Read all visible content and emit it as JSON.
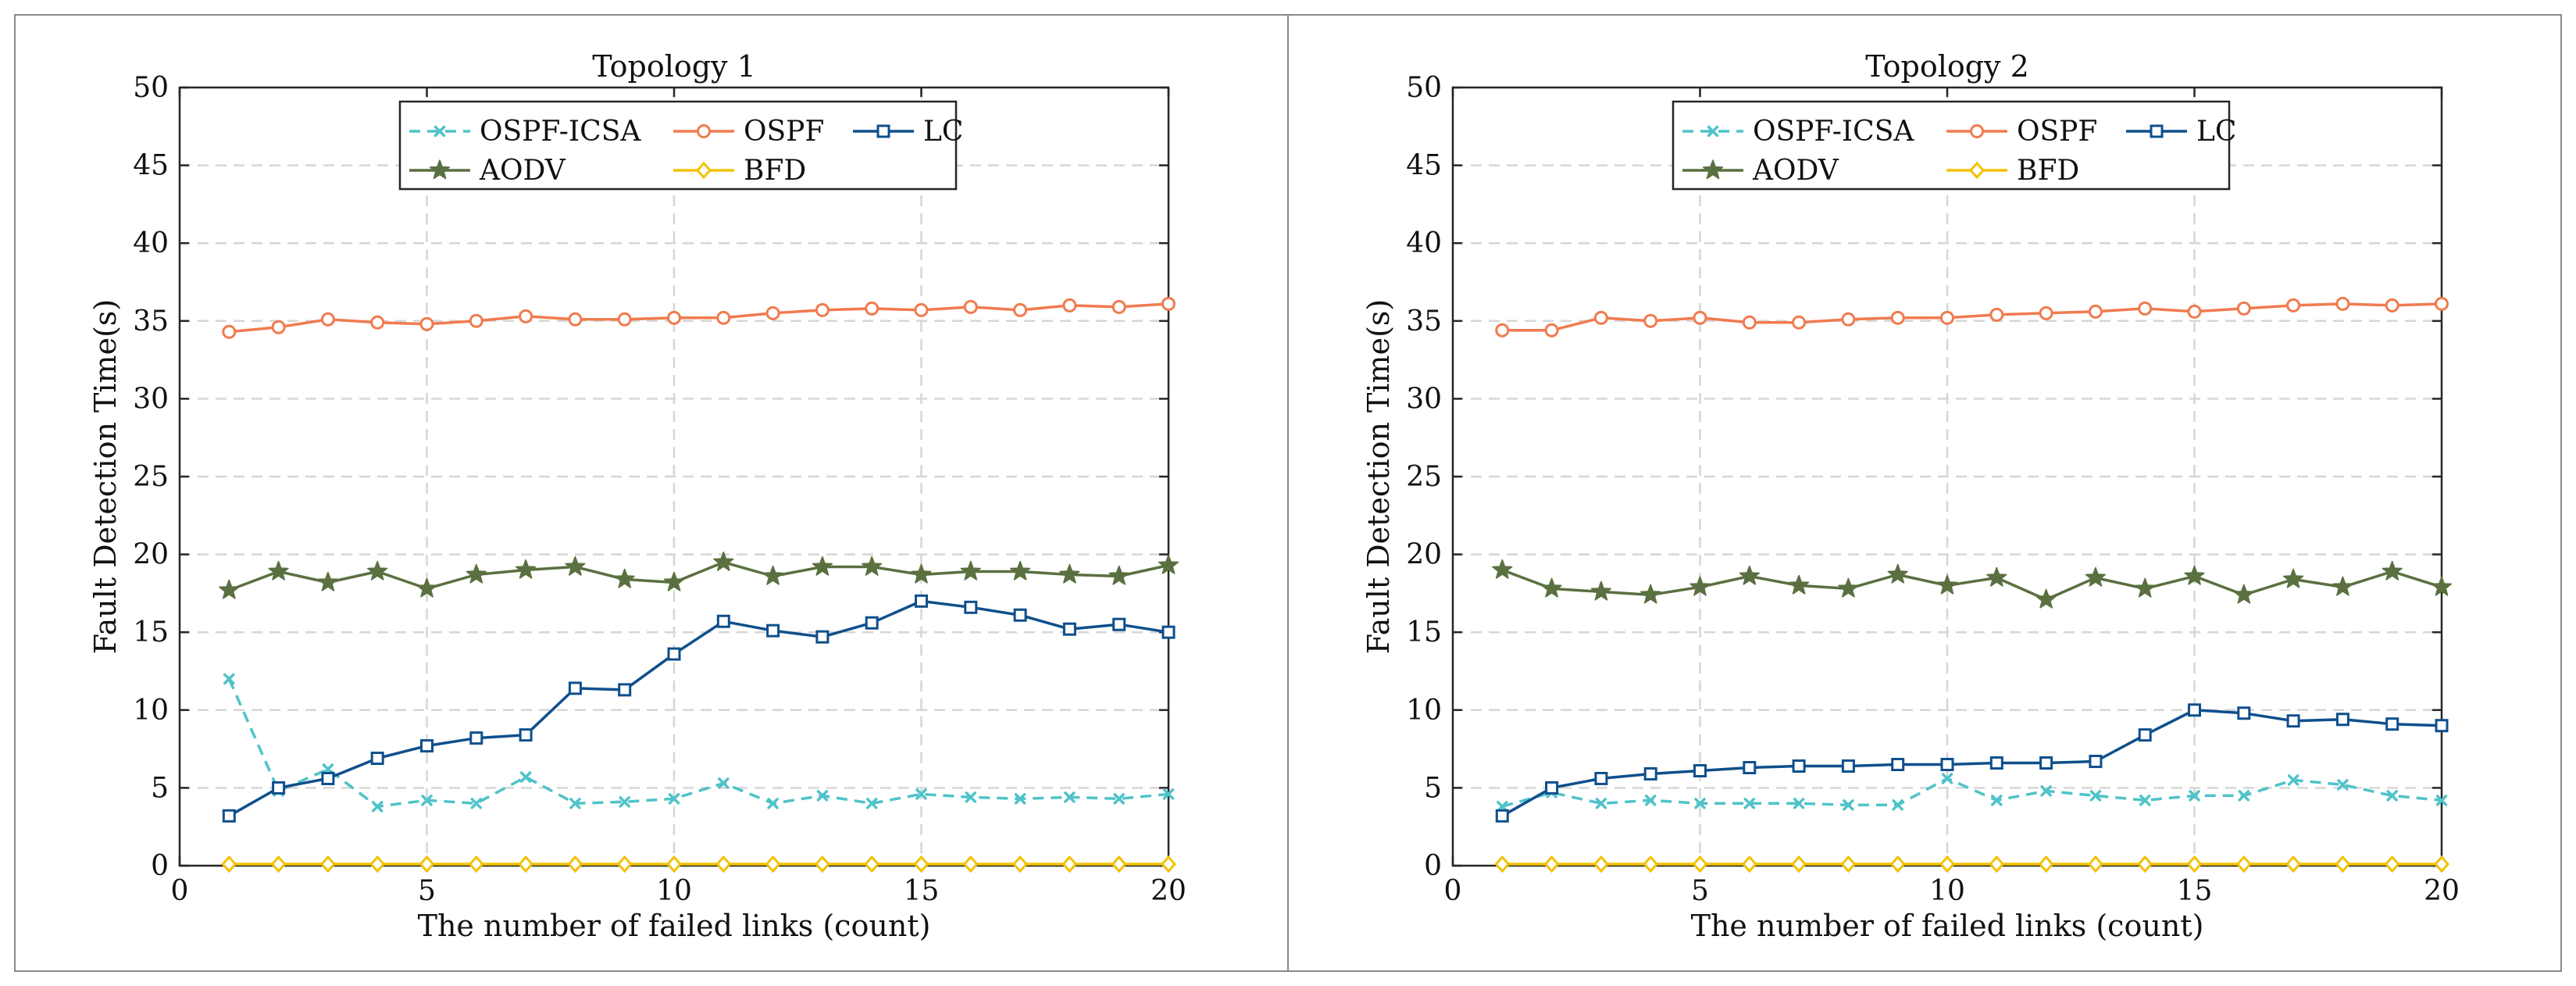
{
  "chart_data": [
    {
      "type": "line",
      "title": "Topology 1",
      "xlabel": "The number of failed links (count)",
      "ylabel": "Fault Detection Time(s)",
      "xlim": [
        0,
        20
      ],
      "ylim": [
        0,
        50
      ],
      "xticks": [
        0,
        5,
        10,
        15,
        20
      ],
      "yticks": [
        0,
        5,
        10,
        15,
        20,
        25,
        30,
        35,
        40,
        45,
        50
      ],
      "grid": true,
      "legend_position": "top-center",
      "x": [
        1,
        2,
        3,
        4,
        5,
        6,
        7,
        8,
        9,
        10,
        11,
        12,
        13,
        14,
        15,
        16,
        17,
        18,
        19,
        20
      ],
      "series": [
        {
          "name": "OSPF-ICSA",
          "color": "#4fc3c9",
          "marker": "x",
          "dash": true,
          "values": [
            12.0,
            4.8,
            6.2,
            3.8,
            4.2,
            4.0,
            5.7,
            4.0,
            4.1,
            4.3,
            5.3,
            4.0,
            4.5,
            4.0,
            4.6,
            4.4,
            4.3,
            4.4,
            4.3,
            4.6
          ]
        },
        {
          "name": "OSPF",
          "color": "#f07b4f",
          "marker": "circle",
          "dash": false,
          "values": [
            34.3,
            34.6,
            35.1,
            34.9,
            34.8,
            35.0,
            35.3,
            35.1,
            35.1,
            35.2,
            35.2,
            35.5,
            35.7,
            35.8,
            35.7,
            35.9,
            35.7,
            36.0,
            35.9,
            36.1
          ]
        },
        {
          "name": "LC",
          "color": "#0f4f8c",
          "marker": "square",
          "dash": false,
          "values": [
            3.2,
            5.0,
            5.6,
            6.9,
            7.7,
            8.2,
            8.4,
            11.4,
            11.3,
            13.6,
            15.7,
            15.1,
            14.7,
            15.6,
            17.0,
            16.6,
            16.1,
            15.2,
            15.5,
            15.0
          ]
        },
        {
          "name": "AODV",
          "color": "#5a7040",
          "marker": "star",
          "dash": false,
          "values": [
            17.7,
            18.9,
            18.2,
            18.9,
            17.8,
            18.7,
            19.0,
            19.2,
            18.4,
            18.2,
            19.5,
            18.6,
            19.2,
            19.2,
            18.7,
            18.9,
            18.9,
            18.7,
            18.6,
            19.3
          ]
        },
        {
          "name": "BFD",
          "color": "#f2c200",
          "marker": "diamond",
          "dash": false,
          "values": [
            0.1,
            0.1,
            0.1,
            0.1,
            0.1,
            0.1,
            0.1,
            0.1,
            0.1,
            0.1,
            0.1,
            0.1,
            0.1,
            0.1,
            0.1,
            0.1,
            0.1,
            0.1,
            0.1,
            0.1
          ]
        }
      ]
    },
    {
      "type": "line",
      "title": "Topology 2",
      "xlabel": "The number of failed links (count)",
      "ylabel": "Fault Detection Time(s)",
      "xlim": [
        0,
        20
      ],
      "ylim": [
        0,
        50
      ],
      "xticks": [
        0,
        5,
        10,
        15,
        20
      ],
      "yticks": [
        0,
        5,
        10,
        15,
        20,
        25,
        30,
        35,
        40,
        45,
        50
      ],
      "grid": true,
      "legend_position": "top-center",
      "x": [
        1,
        2,
        3,
        4,
        5,
        6,
        7,
        8,
        9,
        10,
        11,
        12,
        13,
        14,
        15,
        16,
        17,
        18,
        19,
        20
      ],
      "series": [
        {
          "name": "OSPF-ICSA",
          "color": "#4fc3c9",
          "marker": "x",
          "dash": true,
          "values": [
            3.8,
            4.7,
            4.0,
            4.2,
            4.0,
            4.0,
            4.0,
            3.9,
            3.9,
            5.6,
            4.2,
            4.8,
            4.5,
            4.2,
            4.5,
            4.5,
            5.5,
            5.2,
            4.5,
            4.2
          ]
        },
        {
          "name": "OSPF",
          "color": "#f07b4f",
          "marker": "circle",
          "dash": false,
          "values": [
            34.4,
            34.4,
            35.2,
            35.0,
            35.2,
            34.9,
            34.9,
            35.1,
            35.2,
            35.2,
            35.4,
            35.5,
            35.6,
            35.8,
            35.6,
            35.8,
            36.0,
            36.1,
            36.0,
            36.1
          ]
        },
        {
          "name": "LC",
          "color": "#0f4f8c",
          "marker": "square",
          "dash": false,
          "values": [
            3.2,
            5.0,
            5.6,
            5.9,
            6.1,
            6.3,
            6.4,
            6.4,
            6.5,
            6.5,
            6.6,
            6.6,
            6.7,
            8.4,
            10.0,
            9.8,
            9.3,
            9.4,
            9.1,
            9.0
          ]
        },
        {
          "name": "AODV",
          "color": "#5a7040",
          "marker": "star",
          "dash": false,
          "values": [
            19.0,
            17.8,
            17.6,
            17.4,
            17.9,
            18.6,
            18.0,
            17.8,
            18.7,
            18.0,
            18.5,
            17.1,
            18.5,
            17.8,
            18.6,
            17.4,
            18.4,
            17.9,
            18.9,
            17.9
          ]
        },
        {
          "name": "BFD",
          "color": "#f2c200",
          "marker": "diamond",
          "dash": false,
          "values": [
            0.1,
            0.1,
            0.1,
            0.1,
            0.1,
            0.1,
            0.1,
            0.1,
            0.1,
            0.1,
            0.1,
            0.1,
            0.1,
            0.1,
            0.1,
            0.1,
            0.1,
            0.1,
            0.1,
            0.1
          ]
        }
      ]
    }
  ]
}
